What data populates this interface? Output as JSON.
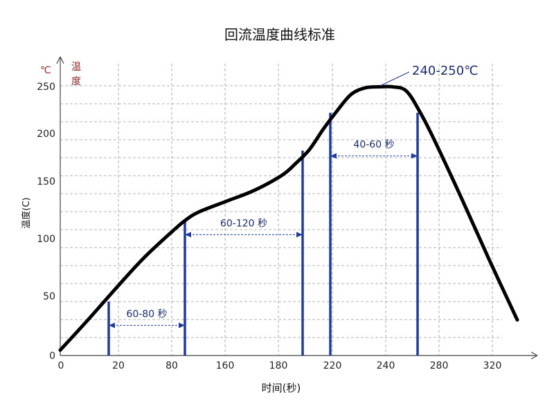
{
  "chart_data": {
    "type": "line",
    "title": "回流温度曲线标准",
    "xlabel": "时间(秒)",
    "ylabel": "温度(C)",
    "y_unit_label": "℃",
    "y_name_label": [
      "温",
      "度"
    ],
    "x_tick_labels": [
      "0",
      "20",
      "80",
      "160",
      "180",
      "220",
      "240",
      "280",
      "320"
    ],
    "y_tick_labels": [
      "0",
      "50",
      "100",
      "150",
      "200",
      "250"
    ],
    "ylim": [
      0,
      260
    ],
    "grid": true,
    "series": [
      {
        "points": [
          [
            0,
            5
          ],
          [
            20,
            33
          ],
          [
            40,
            62
          ],
          [
            60,
            90
          ],
          [
            80,
            114
          ],
          [
            90,
            125
          ],
          [
            100,
            133
          ],
          [
            120,
            143
          ],
          [
            140,
            153
          ],
          [
            160,
            167
          ],
          [
            170,
            178
          ],
          [
            180,
            191
          ],
          [
            190,
            210
          ],
          [
            200,
            227
          ],
          [
            210,
            242
          ],
          [
            220,
            248
          ],
          [
            230,
            249
          ],
          [
            240,
            249
          ],
          [
            250,
            245
          ],
          [
            260,
            225
          ],
          [
            270,
            200
          ],
          [
            290,
            145
          ],
          [
            310,
            88
          ],
          [
            330,
            33
          ]
        ]
      }
    ],
    "markers": [
      {
        "x": 35,
        "y": 50
      },
      {
        "x": 90,
        "y": 125
      },
      {
        "x": 175,
        "y": 190
      },
      {
        "x": 195,
        "y": 225
      },
      {
        "x": 258,
        "y": 225
      }
    ],
    "intervals": [
      {
        "label": "60-80 秒",
        "from": 35,
        "to": 90,
        "y": 28
      },
      {
        "label": "60-120 秒",
        "from": 90,
        "to": 175,
        "y": 112
      },
      {
        "label": "40-60 秒",
        "from": 195,
        "to": 258,
        "y": 185
      }
    ],
    "callout": {
      "label": "240-250℃",
      "x": 225,
      "y": 250
    }
  }
}
